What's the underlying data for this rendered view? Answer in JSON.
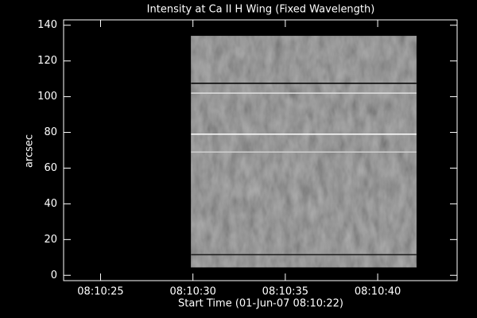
{
  "chart_data": {
    "type": "image",
    "title": "Intensity at Ca II H Wing (Fixed Wavelength)",
    "xlabel": "Start Time (01-Jun-07 08:10:22)",
    "ylabel": "arcsec",
    "xlim": [
      1,
      22.3
    ],
    "ylim": [
      -3,
      143
    ],
    "xticks": [
      {
        "value": 3,
        "label": "08:10:25"
      },
      {
        "value": 8,
        "label": "08:10:30"
      },
      {
        "value": 13,
        "label": "08:10:35"
      },
      {
        "value": 18,
        "label": "08:10:40"
      }
    ],
    "yticks": [
      0,
      20,
      40,
      60,
      80,
      100,
      120,
      140
    ],
    "image": {
      "x": [
        7.9,
        20.1
      ],
      "y": [
        4.5,
        134
      ],
      "color": "#6a6a6a"
    },
    "hlines": [
      {
        "y": 107.5,
        "color": "#000000"
      },
      {
        "y": 102,
        "color": "#e0e0e0"
      },
      {
        "y": 79,
        "color": "#ffffff"
      },
      {
        "y": 69,
        "color": "#cfcfcf"
      },
      {
        "y": 11.5,
        "color": "#1a1a1a"
      }
    ]
  }
}
